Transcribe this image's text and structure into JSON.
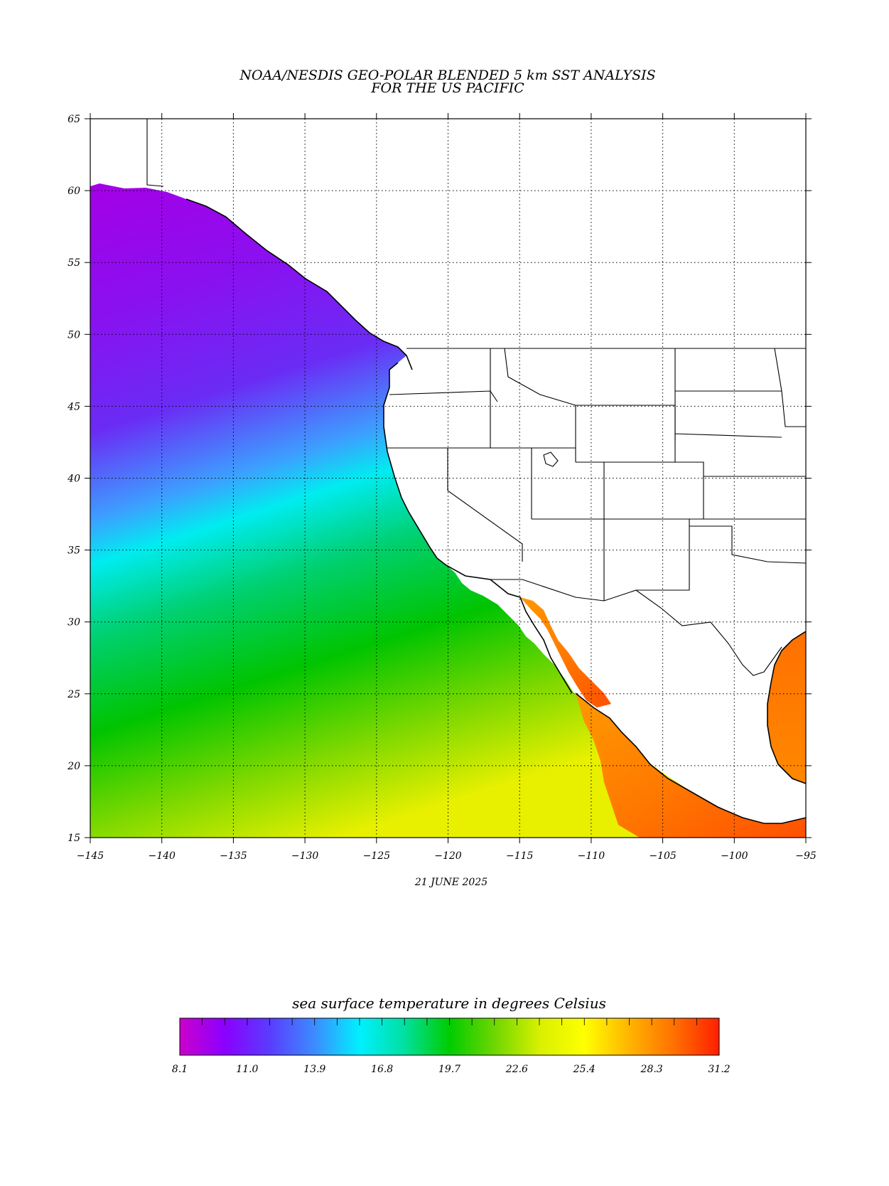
{
  "title": {
    "line1": "NOAA/NESDIS GEO-POLAR BLENDED 5 km SST ANALYSIS",
    "line2": "FOR THE US PACIFIC"
  },
  "date": "21 JUNE 2025",
  "map": {
    "lon_range": [
      -145,
      -95
    ],
    "lat_range": [
      15,
      65
    ],
    "lon_ticks": [
      -145,
      -140,
      -135,
      -130,
      -125,
      -120,
      -115,
      -110,
      -105,
      -100,
      -95
    ],
    "lat_ticks": [
      15,
      20,
      25,
      30,
      35,
      40,
      45,
      50,
      55,
      60,
      65
    ],
    "lon_tick_labels": [
      "−145",
      "−140",
      "−135",
      "−130",
      "−125",
      "−120",
      "−115",
      "−110",
      "−105",
      "−100",
      "−95"
    ],
    "lat_tick_labels": [
      "15",
      "20",
      "25",
      "30",
      "35",
      "40",
      "45",
      "50",
      "55",
      "60",
      "65"
    ],
    "grid": true
  },
  "colorbar": {
    "title": "sea surface temperature in degrees Celsius",
    "labels": [
      "8.1",
      "11.0",
      "13.9",
      "16.8",
      "19.7",
      "22.6",
      "25.4",
      "28.3",
      "31.2"
    ],
    "range": [
      8.1,
      31.2
    ],
    "colors": [
      "#cc00cc",
      "#8a00ff",
      "#5a3cff",
      "#3c8cff",
      "#00f0ff",
      "#00e0a0",
      "#00cc00",
      "#6ed600",
      "#d8f000",
      "#ffff00",
      "#ffb400",
      "#ff7000",
      "#ff2000"
    ]
  }
}
